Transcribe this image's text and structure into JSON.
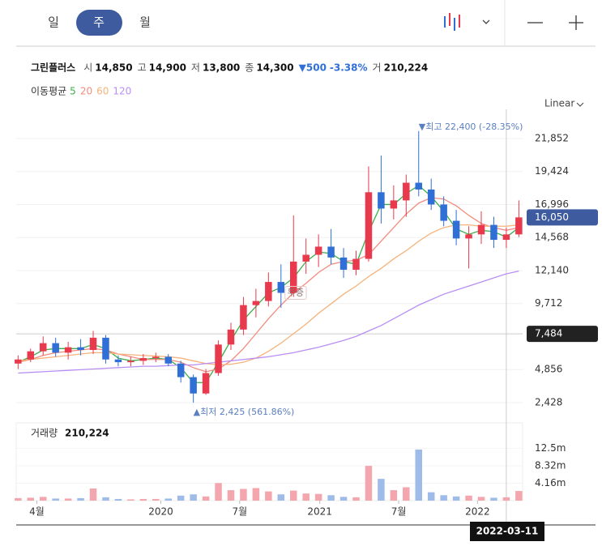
{
  "header": {
    "tabs": [
      "일",
      "주",
      "월"
    ],
    "active_tab": 1,
    "name": "그린플러스",
    "quote": [
      {
        "label": "시",
        "value": "14,850"
      },
      {
        "label": "고",
        "value": "14,900"
      },
      {
        "label": "저",
        "value": "13,800"
      },
      {
        "label": "종",
        "value": "14,300"
      }
    ],
    "change": "▼500",
    "change_pct": "-3.38%",
    "volume_label": "거",
    "volume": "210,224",
    "ma_label": "이동평균",
    "scale": "Linear"
  },
  "chart_data": {
    "type": "candlestick",
    "categories": [
      null,
      null,
      null,
      null,
      null,
      null,
      null,
      null,
      null,
      null,
      null,
      null,
      null,
      null,
      null,
      null,
      null,
      null,
      null,
      null,
      null,
      null,
      null,
      null,
      null,
      null,
      null,
      null,
      null,
      null,
      null,
      null,
      null,
      null,
      null,
      null,
      null,
      null,
      null,
      null,
      null
    ],
    "open": [
      5300,
      5600,
      6200,
      6800,
      6100,
      6500,
      6300,
      7200,
      5600,
      5400,
      5500,
      5700,
      5800,
      5300,
      4300,
      3100,
      4600,
      6700,
      7800,
      9600,
      9900,
      11300,
      10500,
      12800,
      13300,
      13900,
      13100,
      12200,
      13000,
      17900,
      16700,
      17300,
      18600,
      18100,
      17000,
      15800,
      14500,
      14800,
      15500,
      14400,
      14800
    ],
    "high": [
      5900,
      6400,
      7300,
      7200,
      6900,
      7100,
      7700,
      7400,
      5900,
      5800,
      6000,
      6100,
      6000,
      5500,
      4500,
      4900,
      7000,
      8300,
      10200,
      10800,
      12000,
      12600,
      16200,
      14500,
      14800,
      15200,
      13800,
      13600,
      19800,
      20600,
      18400,
      19200,
      22400,
      18900,
      17600,
      16600,
      15400,
      16500,
      16100,
      15300,
      17300
    ],
    "low": [
      4900,
      5400,
      5900,
      5800,
      5600,
      5900,
      6000,
      5300,
      5100,
      5100,
      5200,
      5400,
      5100,
      3900,
      2425,
      3000,
      4400,
      6300,
      7400,
      8700,
      9500,
      9400,
      10200,
      11900,
      12400,
      12600,
      11600,
      11800,
      12800,
      15600,
      15900,
      16100,
      17600,
      16600,
      15400,
      14000,
      12300,
      14100,
      13800,
      13800,
      14600
    ],
    "close": [
      5600,
      6200,
      6800,
      6100,
      6500,
      6300,
      7200,
      5600,
      5400,
      5500,
      5700,
      5800,
      5300,
      4300,
      3100,
      4600,
      6700,
      7800,
      9600,
      9900,
      11300,
      10500,
      12800,
      13300,
      13900,
      13100,
      12200,
      13000,
      17900,
      16700,
      17300,
      18600,
      18100,
      17000,
      15800,
      14500,
      14800,
      15500,
      14400,
      14800,
      16050
    ],
    "up_color": "#e8394d",
    "down_color": "#2f6fd6",
    "series": [
      {
        "name": "5",
        "color": "#3cae49",
        "values": [
          5400,
          5800,
          6300,
          6400,
          6400,
          6400,
          6700,
          6400,
          5700,
          5500,
          5600,
          5700,
          5600,
          5000,
          3900,
          3900,
          5400,
          7000,
          8500,
          9500,
          10500,
          10900,
          11600,
          12800,
          13500,
          13400,
          12800,
          12600,
          15000,
          17000,
          17000,
          17800,
          18400,
          17600,
          16500,
          15200,
          14800,
          15100,
          15000,
          14600,
          15300
        ]
      },
      {
        "name": "20",
        "color": "#f28b7d",
        "values": [
          5400,
          5600,
          5900,
          6100,
          6200,
          6300,
          6400,
          6300,
          6000,
          5800,
          5600,
          5600,
          5600,
          5400,
          5000,
          4700,
          4900,
          5500,
          6400,
          7500,
          8600,
          9600,
          10500,
          11200,
          12000,
          12600,
          12800,
          12900,
          13300,
          14300,
          15300,
          16300,
          17100,
          17500,
          17400,
          16900,
          16200,
          15600,
          15300,
          15100,
          15300
        ]
      },
      {
        "name": "60",
        "color": "#f6b27a",
        "values": [
          5500,
          5600,
          5700,
          5800,
          5900,
          6000,
          6100,
          6100,
          6000,
          5950,
          5900,
          5850,
          5800,
          5700,
          5500,
          5300,
          5200,
          5250,
          5400,
          5700,
          6200,
          6800,
          7500,
          8200,
          9000,
          9700,
          10400,
          11000,
          11700,
          12300,
          13000,
          13600,
          14300,
          14900,
          15300,
          15500,
          15500,
          15400,
          15400,
          15400,
          15500
        ]
      },
      {
        "name": "120",
        "color": "#b98ef5",
        "values": [
          4600,
          4650,
          4700,
          4750,
          4800,
          4850,
          4900,
          4950,
          5000,
          5050,
          5100,
          5100,
          5150,
          5200,
          5200,
          5300,
          5400,
          5500,
          5600,
          5700,
          5800,
          5950,
          6100,
          6300,
          6500,
          6750,
          7000,
          7300,
          7700,
          8100,
          8600,
          9100,
          9600,
          10000,
          10400,
          10700,
          11000,
          11300,
          11600,
          11900,
          12100
        ]
      }
    ],
    "xlim": [
      -0.15,
      40.3
    ],
    "xticks": [
      {
        "value": 1.5,
        "label": "4월"
      },
      {
        "value": 11.4,
        "label": "2020"
      },
      {
        "value": 17.7,
        "label": "7월"
      },
      {
        "value": 24.1,
        "label": "2021"
      },
      {
        "value": 30.4,
        "label": "7월"
      },
      {
        "value": 36.7,
        "label": "2022"
      }
    ],
    "ylim": [
      1355,
      23400
    ],
    "yticks": [
      {
        "value": 2428,
        "label": "2,428"
      },
      {
        "value": 4856,
        "label": "4,856"
      },
      {
        "value": 9712,
        "label": "9,712"
      },
      {
        "value": 12140,
        "label": "12,140"
      },
      {
        "value": 14568,
        "label": "14,568"
      },
      {
        "value": 16996,
        "label": "16,996"
      },
      {
        "value": 19424,
        "label": "19,424"
      },
      {
        "value": 21852,
        "label": "21,852"
      }
    ],
    "last_price": {
      "value": 16050,
      "label": "16,050"
    },
    "crosshair": {
      "index": 39,
      "date": "2022-03-11",
      "price": {
        "value": 7484,
        "label": "7,484"
      }
    },
    "annotations": [
      {
        "index": 32,
        "value": 22400,
        "label": "▼최고 22,400 (-28.35%)"
      },
      {
        "index": 14,
        "value": 2425,
        "label": "▲최저 2,425 (561.86%)"
      },
      {
        "index": 21,
        "value": 10500,
        "label": "무증"
      }
    ],
    "volume_title": "거래량",
    "volume_value": "210,224",
    "volume": [
      600000,
      700000,
      900000,
      500000,
      500000,
      600000,
      2900000,
      800000,
      400000,
      300000,
      400000,
      400000,
      500000,
      1200000,
      1500000,
      1000000,
      4200000,
      2500000,
      2800000,
      3000000,
      2200000,
      1500000,
      2400000,
      1700000,
      1600000,
      1300000,
      900000,
      800000,
      8300000,
      5200000,
      2500000,
      3200000,
      12200000,
      2000000,
      1300000,
      1000000,
      1200000,
      900000,
      700000,
      800000,
      2300000
    ],
    "vlim": [
      0,
      18570000
    ],
    "vticks": [
      {
        "value": 4160000,
        "label": "4.16m"
      },
      {
        "value": 8320000,
        "label": "8.32m"
      },
      {
        "value": 12500000,
        "label": "12.5m"
      }
    ]
  }
}
